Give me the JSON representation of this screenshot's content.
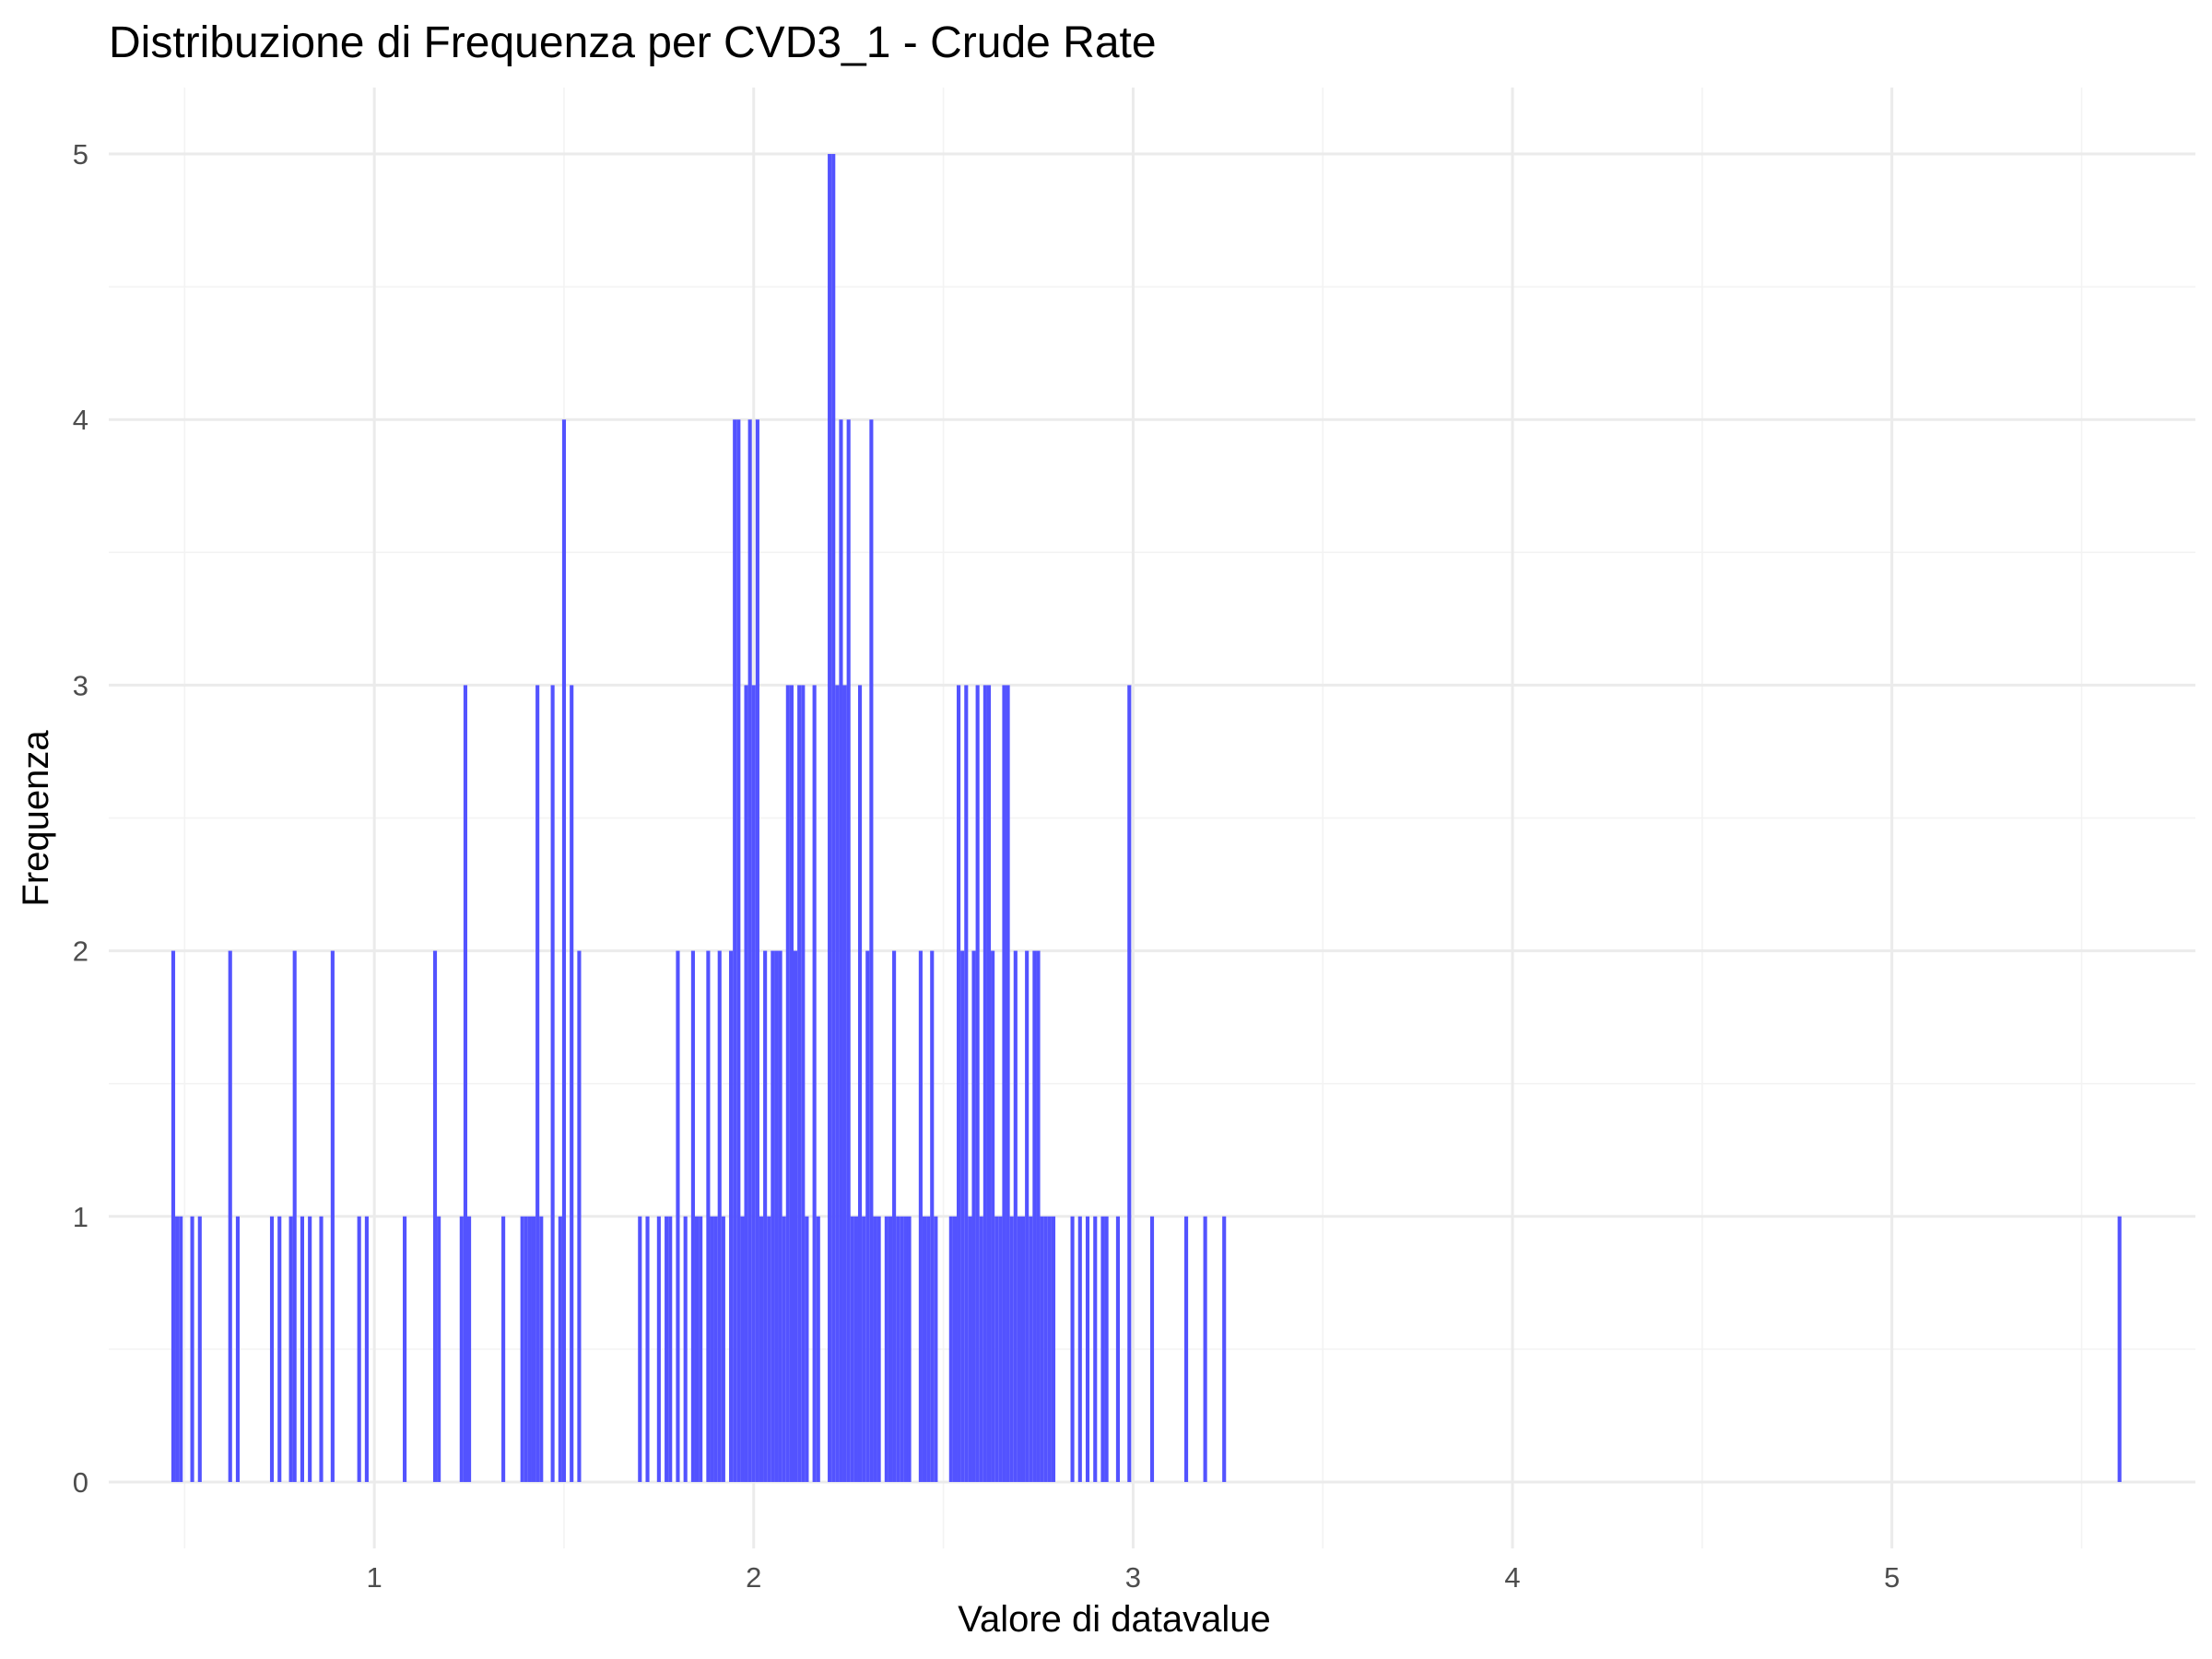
{
  "chart_data": {
    "type": "bar",
    "title": "Distribuzione di Frequenza per CVD3_1 - Crude Rate",
    "xlabel": "Valore di datavalue",
    "ylabel": "Frequenza",
    "xlim": [
      0.3,
      5.8
    ],
    "ylim": [
      -0.25,
      5.25
    ],
    "x_ticks": [
      1,
      2,
      3,
      4,
      5
    ],
    "y_ticks": [
      0,
      1,
      2,
      3,
      4,
      5
    ],
    "bin_width": 0.01,
    "bar_color": "#4d4dff",
    "grid": true,
    "legend": "none",
    "bins": [
      {
        "x": 0.47,
        "count": 2
      },
      {
        "x": 0.48,
        "count": 1
      },
      {
        "x": 0.49,
        "count": 1
      },
      {
        "x": 0.52,
        "count": 1
      },
      {
        "x": 0.54,
        "count": 1
      },
      {
        "x": 0.62,
        "count": 2
      },
      {
        "x": 0.64,
        "count": 1
      },
      {
        "x": 0.73,
        "count": 1
      },
      {
        "x": 0.75,
        "count": 1
      },
      {
        "x": 0.78,
        "count": 1
      },
      {
        "x": 0.79,
        "count": 2
      },
      {
        "x": 0.81,
        "count": 1
      },
      {
        "x": 0.83,
        "count": 1
      },
      {
        "x": 0.86,
        "count": 1
      },
      {
        "x": 0.89,
        "count": 2
      },
      {
        "x": 0.96,
        "count": 1
      },
      {
        "x": 0.98,
        "count": 1
      },
      {
        "x": 1.08,
        "count": 1
      },
      {
        "x": 1.16,
        "count": 2
      },
      {
        "x": 1.17,
        "count": 1
      },
      {
        "x": 1.23,
        "count": 1
      },
      {
        "x": 1.24,
        "count": 3
      },
      {
        "x": 1.25,
        "count": 1
      },
      {
        "x": 1.34,
        "count": 1
      },
      {
        "x": 1.39,
        "count": 1
      },
      {
        "x": 1.4,
        "count": 1
      },
      {
        "x": 1.41,
        "count": 1
      },
      {
        "x": 1.42,
        "count": 1
      },
      {
        "x": 1.43,
        "count": 3
      },
      {
        "x": 1.44,
        "count": 1
      },
      {
        "x": 1.47,
        "count": 3
      },
      {
        "x": 1.49,
        "count": 1
      },
      {
        "x": 1.5,
        "count": 4
      },
      {
        "x": 1.52,
        "count": 3
      },
      {
        "x": 1.54,
        "count": 2
      },
      {
        "x": 1.7,
        "count": 1
      },
      {
        "x": 1.72,
        "count": 1
      },
      {
        "x": 1.75,
        "count": 1
      },
      {
        "x": 1.77,
        "count": 1
      },
      {
        "x": 1.78,
        "count": 1
      },
      {
        "x": 1.8,
        "count": 2
      },
      {
        "x": 1.82,
        "count": 1
      },
      {
        "x": 1.84,
        "count": 2
      },
      {
        "x": 1.85,
        "count": 1
      },
      {
        "x": 1.86,
        "count": 1
      },
      {
        "x": 1.88,
        "count": 2
      },
      {
        "x": 1.89,
        "count": 1
      },
      {
        "x": 1.9,
        "count": 1
      },
      {
        "x": 1.91,
        "count": 2
      },
      {
        "x": 1.92,
        "count": 1
      },
      {
        "x": 1.94,
        "count": 2
      },
      {
        "x": 1.95,
        "count": 4
      },
      {
        "x": 1.96,
        "count": 4
      },
      {
        "x": 1.97,
        "count": 1
      },
      {
        "x": 1.98,
        "count": 3
      },
      {
        "x": 1.99,
        "count": 4
      },
      {
        "x": 2.0,
        "count": 3
      },
      {
        "x": 2.01,
        "count": 4
      },
      {
        "x": 2.02,
        "count": 1
      },
      {
        "x": 2.03,
        "count": 2
      },
      {
        "x": 2.04,
        "count": 1
      },
      {
        "x": 2.05,
        "count": 2
      },
      {
        "x": 2.06,
        "count": 2
      },
      {
        "x": 2.07,
        "count": 2
      },
      {
        "x": 2.08,
        "count": 1
      },
      {
        "x": 2.09,
        "count": 3
      },
      {
        "x": 2.1,
        "count": 3
      },
      {
        "x": 2.11,
        "count": 2
      },
      {
        "x": 2.12,
        "count": 3
      },
      {
        "x": 2.13,
        "count": 3
      },
      {
        "x": 2.14,
        "count": 1
      },
      {
        "x": 2.16,
        "count": 3
      },
      {
        "x": 2.17,
        "count": 1
      },
      {
        "x": 2.2,
        "count": 5
      },
      {
        "x": 2.21,
        "count": 5
      },
      {
        "x": 2.22,
        "count": 3
      },
      {
        "x": 2.23,
        "count": 4
      },
      {
        "x": 2.24,
        "count": 3
      },
      {
        "x": 2.25,
        "count": 4
      },
      {
        "x": 2.26,
        "count": 1
      },
      {
        "x": 2.27,
        "count": 1
      },
      {
        "x": 2.28,
        "count": 3
      },
      {
        "x": 2.29,
        "count": 1
      },
      {
        "x": 2.3,
        "count": 2
      },
      {
        "x": 2.31,
        "count": 4
      },
      {
        "x": 2.32,
        "count": 1
      },
      {
        "x": 2.33,
        "count": 1
      },
      {
        "x": 2.35,
        "count": 1
      },
      {
        "x": 2.36,
        "count": 1
      },
      {
        "x": 2.37,
        "count": 2
      },
      {
        "x": 2.38,
        "count": 1
      },
      {
        "x": 2.39,
        "count": 1
      },
      {
        "x": 2.4,
        "count": 1
      },
      {
        "x": 2.41,
        "count": 1
      },
      {
        "x": 2.44,
        "count": 2
      },
      {
        "x": 2.45,
        "count": 1
      },
      {
        "x": 2.46,
        "count": 1
      },
      {
        "x": 2.47,
        "count": 2
      },
      {
        "x": 2.48,
        "count": 1
      },
      {
        "x": 2.52,
        "count": 1
      },
      {
        "x": 2.53,
        "count": 1
      },
      {
        "x": 2.54,
        "count": 3
      },
      {
        "x": 2.55,
        "count": 2
      },
      {
        "x": 2.56,
        "count": 3
      },
      {
        "x": 2.57,
        "count": 1
      },
      {
        "x": 2.58,
        "count": 2
      },
      {
        "x": 2.59,
        "count": 3
      },
      {
        "x": 2.6,
        "count": 1
      },
      {
        "x": 2.61,
        "count": 3
      },
      {
        "x": 2.62,
        "count": 3
      },
      {
        "x": 2.63,
        "count": 2
      },
      {
        "x": 2.64,
        "count": 1
      },
      {
        "x": 2.65,
        "count": 1
      },
      {
        "x": 2.66,
        "count": 3
      },
      {
        "x": 2.67,
        "count": 3
      },
      {
        "x": 2.68,
        "count": 1
      },
      {
        "x": 2.69,
        "count": 2
      },
      {
        "x": 2.7,
        "count": 1
      },
      {
        "x": 2.71,
        "count": 1
      },
      {
        "x": 2.72,
        "count": 2
      },
      {
        "x": 2.73,
        "count": 1
      },
      {
        "x": 2.74,
        "count": 2
      },
      {
        "x": 2.75,
        "count": 2
      },
      {
        "x": 2.76,
        "count": 1
      },
      {
        "x": 2.77,
        "count": 1
      },
      {
        "x": 2.78,
        "count": 1
      },
      {
        "x": 2.79,
        "count": 1
      },
      {
        "x": 2.84,
        "count": 1
      },
      {
        "x": 2.86,
        "count": 1
      },
      {
        "x": 2.88,
        "count": 1
      },
      {
        "x": 2.9,
        "count": 1
      },
      {
        "x": 2.92,
        "count": 1
      },
      {
        "x": 2.93,
        "count": 1
      },
      {
        "x": 2.96,
        "count": 1
      },
      {
        "x": 2.99,
        "count": 3
      },
      {
        "x": 3.05,
        "count": 1
      },
      {
        "x": 3.14,
        "count": 1
      },
      {
        "x": 3.19,
        "count": 1
      },
      {
        "x": 3.24,
        "count": 1
      },
      {
        "x": 5.6,
        "count": 1
      }
    ]
  }
}
